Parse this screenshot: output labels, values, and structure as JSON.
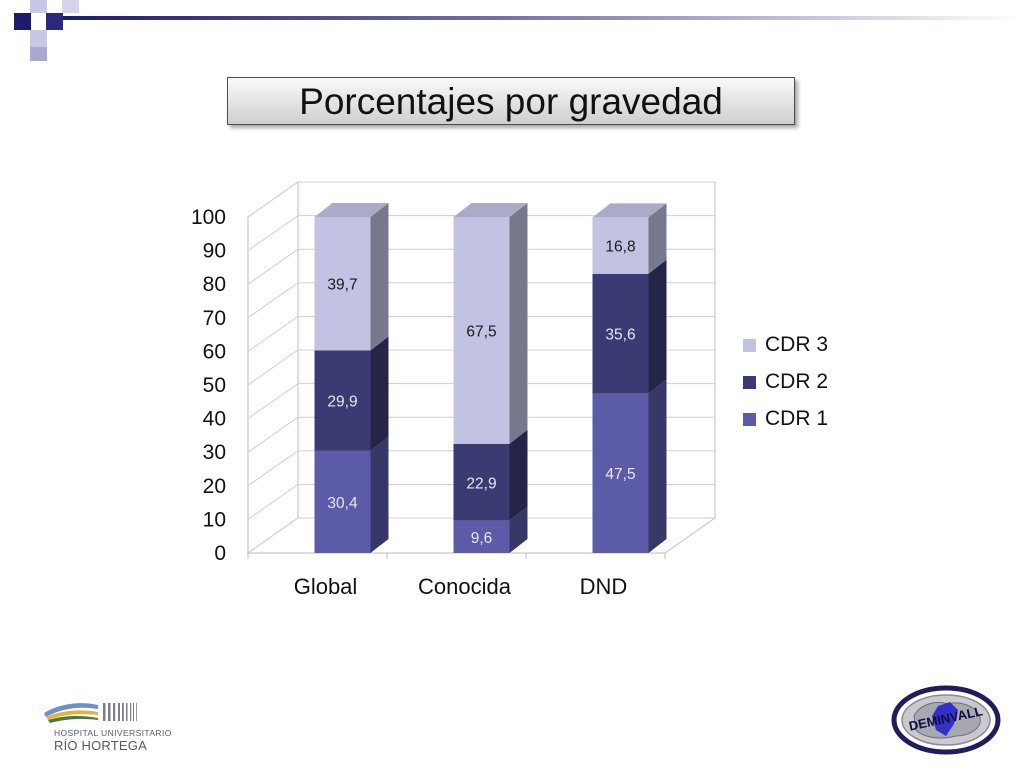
{
  "slide": {
    "title": "Porcentajes por gravedad"
  },
  "colors": {
    "cdr1": "#5b5ba8",
    "cdr2": "#3b3b74",
    "cdr3": "#c2c2e2",
    "label_light": "#e6e6f5",
    "label_dark": "#1a1a1a",
    "axis_text": "#111111"
  },
  "chart_data": {
    "type": "bar",
    "stacked": true,
    "three_d": true,
    "title": "",
    "xlabel": "",
    "ylabel": "",
    "ylim": [
      0,
      100
    ],
    "yticks": [
      0,
      10,
      20,
      30,
      40,
      50,
      60,
      70,
      80,
      90,
      100
    ],
    "categories": [
      "Global",
      "Conocida",
      "DND"
    ],
    "series": [
      {
        "name": "CDR 1",
        "values": [
          30.4,
          9.6,
          47.5
        ],
        "labels": [
          "30,4",
          "9,6",
          "47,5"
        ]
      },
      {
        "name": "CDR 2",
        "values": [
          29.9,
          22.9,
          35.6
        ],
        "labels": [
          "29,9",
          "22,9",
          "35,6"
        ]
      },
      {
        "name": "CDR 3",
        "values": [
          39.7,
          67.5,
          16.8
        ],
        "labels": [
          "39,7",
          "67,5",
          "16,8"
        ]
      }
    ],
    "legend": {
      "position": "right",
      "order": [
        "CDR 3",
        "CDR 2",
        "CDR 1"
      ]
    },
    "grid": true
  },
  "logos": {
    "hospital_line1": "HOSPITAL UNIVERSITARIO",
    "hospital_line2": "RÍO HORTEGA",
    "deminvall": "DEMINVALL"
  }
}
